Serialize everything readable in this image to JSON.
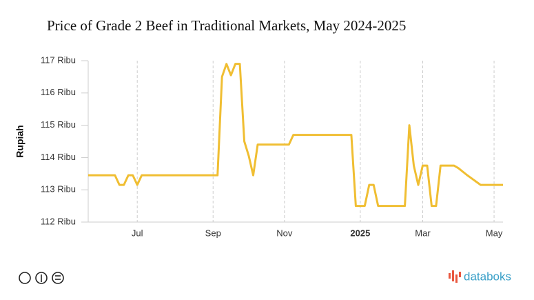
{
  "chart_data": {
    "type": "line",
    "title": "Price of Grade 2 Beef in Traditional Markets, May 2024-2025",
    "y_label": "Rupiah",
    "brand": "databoks",
    "categories": [
      null,
      null,
      null,
      null,
      null,
      null,
      null,
      null,
      null,
      null,
      null,
      "Jul",
      null,
      null,
      null,
      null,
      null,
      null,
      null,
      null,
      null,
      null,
      null,
      null,
      null,
      null,
      null,
      null,
      "Sep",
      null,
      null,
      null,
      null,
      null,
      null,
      null,
      null,
      null,
      null,
      null,
      null,
      null,
      null,
      null,
      "Nov",
      null,
      null,
      null,
      null,
      null,
      null,
      null,
      null,
      null,
      null,
      null,
      null,
      null,
      null,
      null,
      null,
      "2025",
      null,
      null,
      null,
      null,
      null,
      null,
      null,
      null,
      null,
      null,
      null,
      null,
      null,
      "Mar",
      null,
      null,
      null,
      null,
      null,
      null,
      null,
      null,
      null,
      null,
      null,
      null,
      null,
      null,
      null,
      "May",
      null,
      null
    ],
    "series": [
      {
        "color": "#f0be32",
        "values": [
          113.45,
          113.45,
          113.45,
          113.45,
          113.45,
          113.45,
          113.45,
          113.15,
          113.15,
          113.45,
          113.45,
          113.15,
          113.45,
          113.45,
          113.45,
          113.45,
          113.45,
          113.45,
          113.45,
          113.45,
          113.45,
          113.45,
          113.45,
          113.45,
          113.45,
          113.45,
          113.45,
          113.45,
          113.45,
          113.45,
          116.5,
          116.9,
          116.55,
          116.9,
          116.9,
          114.5,
          114.05,
          113.45,
          114.4,
          114.4,
          114.4,
          114.4,
          114.4,
          114.4,
          114.4,
          114.4,
          114.7,
          114.7,
          114.7,
          114.7,
          114.7,
          114.7,
          114.7,
          114.7,
          114.7,
          114.7,
          114.7,
          114.7,
          114.7,
          114.7,
          112.5,
          112.5,
          112.5,
          113.15,
          113.15,
          112.5,
          112.5,
          112.5,
          112.5,
          112.5,
          112.5,
          112.5,
          115.0,
          113.75,
          113.15,
          113.75,
          113.75,
          112.5,
          112.5,
          113.75,
          113.75,
          113.75,
          113.75,
          113.67,
          113.56,
          113.45,
          113.35,
          113.25,
          113.15,
          113.15,
          113.15,
          113.15,
          113.15,
          113.15
        ]
      }
    ],
    "ylim": [
      112,
      117
    ],
    "yticks": [
      {
        "value": 112,
        "label": "112 Ribu"
      },
      {
        "value": 113,
        "label": "113 Ribu"
      },
      {
        "value": 114,
        "label": "114 Ribu"
      },
      {
        "value": 115,
        "label": "115 Ribu"
      },
      {
        "value": 116,
        "label": "116 Ribu"
      },
      {
        "value": 117,
        "label": "117 Ribu"
      }
    ],
    "grid": true
  }
}
